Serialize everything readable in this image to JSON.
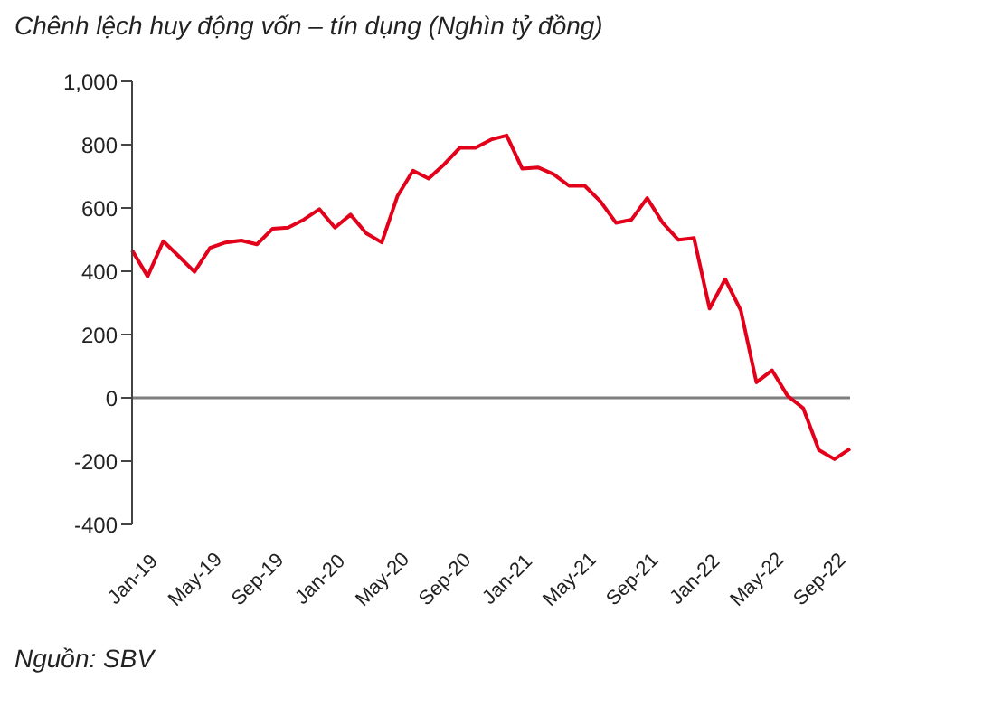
{
  "chart_data": {
    "type": "line",
    "title": "Chênh lệch huy động vốn – tín dụng (Nghìn tỷ đồng)",
    "categories": [
      "Jan-19",
      null,
      null,
      null,
      "May-19",
      null,
      null,
      null,
      "Sep-19",
      null,
      null,
      null,
      "Jan-20",
      null,
      null,
      null,
      "May-20",
      null,
      null,
      null,
      "Sep-20",
      null,
      null,
      null,
      "Jan-21",
      null,
      null,
      null,
      "May-21",
      null,
      null,
      null,
      "Sep-21",
      null,
      null,
      null,
      "Jan-22",
      null,
      null,
      null,
      "May-22",
      null,
      null,
      null,
      "Sep-22",
      null,
      null
    ],
    "series": [
      {
        "color": "#e2001a",
        "values": [
          466,
          384,
          495,
          447,
          398,
          474,
          491,
          497,
          485,
          534,
          538,
          563,
          596,
          538,
          579,
          520,
          491,
          637,
          718,
          693,
          738,
          790,
          790,
          816,
          829,
          724,
          728,
          707,
          670,
          670,
          621,
          553,
          563,
          631,
          553,
          499,
          505,
          282,
          375,
          276,
          49,
          87,
          6,
          -33,
          -165,
          -194,
          -161
        ]
      }
    ],
    "ylim": [
      -400,
      1000
    ],
    "yticks": [
      {
        "value": -400,
        "label": "-400"
      },
      {
        "value": -200,
        "label": "-200"
      },
      {
        "value": 0,
        "label": "0"
      },
      {
        "value": 200,
        "label": "200"
      },
      {
        "value": 400,
        "label": "400"
      },
      {
        "value": 600,
        "label": "600"
      },
      {
        "value": 800,
        "label": "800"
      },
      {
        "value": 1000,
        "label": "1,000"
      }
    ],
    "ref_lines": [
      {
        "axis": "y",
        "value": 0,
        "color": "#7f7f7f"
      }
    ],
    "grid": false,
    "marker": "none",
    "line_style": "solid",
    "annotations": [
      "Nguồn: SBV"
    ]
  }
}
